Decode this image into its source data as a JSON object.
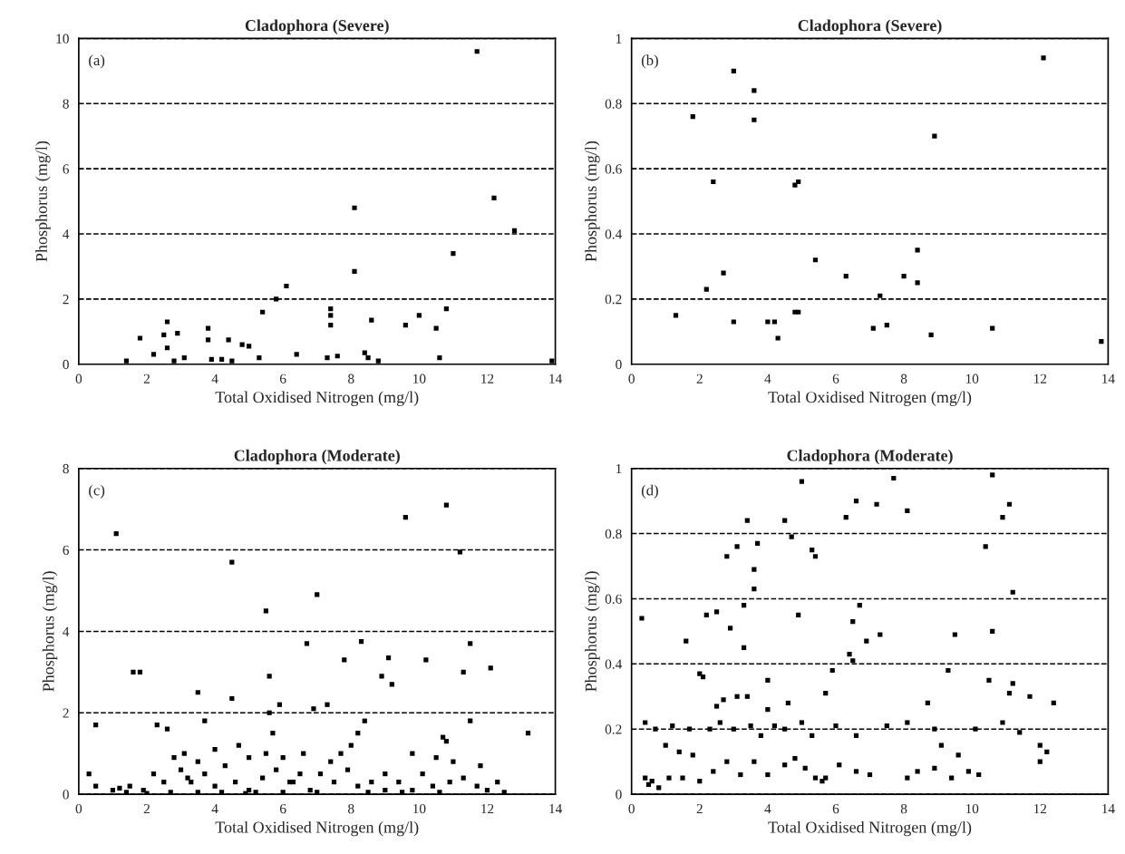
{
  "chart_data": [
    {
      "type": "scatter",
      "title": "Cladophora (Severe)",
      "xlabel": "Total Oxidised Nitrogen (mg/l)",
      "ylabel": "Phosphorus (mg/l)",
      "annotations": [
        "(a)"
      ],
      "xlim": [
        0,
        14
      ],
      "ylim": [
        0,
        10
      ],
      "xticks": [
        0,
        2,
        4,
        6,
        8,
        10,
        12,
        14
      ],
      "yticks": [
        0,
        2,
        4,
        6,
        8,
        10
      ],
      "grid": "y",
      "line_style": "dashed",
      "marker": "square",
      "legend": false,
      "series": [
        {
          "color": "#000000",
          "x": [
            11.7,
            12.2,
            12.8,
            8.1,
            11.0,
            8.1,
            6.1,
            5.8,
            5.4,
            7.4,
            7.4,
            7.4,
            10.8,
            10.5,
            10.0,
            9.6,
            8.6,
            2.6,
            2.9,
            2.5,
            1.8,
            3.8,
            3.8,
            4.4,
            2.6,
            3.1,
            2.2,
            1.4,
            3.9,
            4.2,
            4.8,
            5.0,
            5.3,
            6.4,
            7.3,
            7.6,
            8.4,
            8.5,
            10.6,
            13.9,
            8.8,
            2.8,
            4.5
          ],
          "values": [
            9.6,
            5.1,
            4.1,
            4.8,
            3.4,
            2.85,
            2.4,
            2.0,
            1.6,
            1.7,
            1.5,
            1.2,
            1.7,
            1.1,
            1.5,
            1.2,
            1.35,
            1.3,
            0.95,
            0.9,
            0.8,
            1.1,
            0.75,
            0.75,
            0.5,
            0.2,
            0.3,
            0.1,
            0.15,
            0.15,
            0.6,
            0.55,
            0.2,
            0.3,
            0.2,
            0.25,
            0.35,
            0.2,
            0.2,
            0.1,
            0.1,
            0.1,
            0.1
          ]
        }
      ]
    },
    {
      "type": "scatter",
      "title": "Cladophora (Severe)",
      "xlabel": "Total Oxidised Nitrogen (mg/l)",
      "ylabel": "Phosphorus (mg/l)",
      "annotations": [
        "(b)"
      ],
      "xlim": [
        0,
        14
      ],
      "ylim": [
        0,
        1
      ],
      "xticks": [
        0,
        2,
        4,
        6,
        8,
        10,
        12,
        14
      ],
      "yticks": [
        0,
        0.2,
        0.4,
        0.6,
        0.8,
        1
      ],
      "grid": "y",
      "line_style": "dashed",
      "marker": "square",
      "legend": false,
      "series": [
        {
          "color": "#000000",
          "x": [
            3.0,
            1.8,
            3.6,
            3.6,
            2.4,
            4.8,
            4.9,
            5.4,
            6.3,
            7.3,
            8.0,
            8.4,
            8.4,
            2.2,
            2.7,
            1.3,
            3.0,
            4.0,
            4.2,
            4.3,
            4.8,
            4.9,
            7.1,
            7.5,
            8.8,
            10.6,
            13.8,
            8.9,
            12.1
          ],
          "values": [
            0.9,
            0.76,
            0.75,
            0.84,
            0.56,
            0.55,
            0.56,
            0.32,
            0.27,
            0.21,
            0.27,
            0.25,
            0.35,
            0.23,
            0.28,
            0.15,
            0.13,
            0.13,
            0.13,
            0.08,
            0.16,
            0.16,
            0.11,
            0.12,
            0.09,
            0.11,
            0.07,
            0.7,
            0.94
          ]
        }
      ]
    },
    {
      "type": "scatter",
      "title": "Cladophora (Moderate)",
      "xlabel": "Total Oxidised Nitrogen (mg/l)",
      "ylabel": "Phosphorus (mg/l)",
      "annotations": [
        "(c)"
      ],
      "xlim": [
        0,
        14
      ],
      "ylim": [
        0,
        8
      ],
      "xticks": [
        0,
        2,
        4,
        6,
        8,
        10,
        12,
        14
      ],
      "yticks": [
        0,
        2,
        4,
        6,
        8
      ],
      "grid": "y",
      "line_style": "dashed",
      "marker": "square",
      "legend": false,
      "series": [
        {
          "color": "#000000",
          "x": [
            1.1,
            9.6,
            10.8,
            11.2,
            4.5,
            7.0,
            5.5,
            6.7,
            8.3,
            7.8,
            9.1,
            11.5,
            12.1,
            10.2,
            1.6,
            1.8,
            11.3,
            5.6,
            8.9,
            9.2,
            3.5,
            4.5,
            2.3,
            2.6,
            3.7,
            5.9,
            5.6,
            6.9,
            7.3,
            8.4,
            8.2,
            10.7,
            11.5,
            10.8,
            3.1,
            3.5,
            4.0,
            4.7,
            5.0,
            5.5,
            6.6,
            7.4,
            8.0,
            9.0,
            10.5,
            11.0,
            11.8,
            0.5,
            0.3,
            0.5,
            1.0,
            1.2,
            1.5,
            1.9,
            2.2,
            2.5,
            2.8,
            3.0,
            3.3,
            3.7,
            4.0,
            4.3,
            4.6,
            5.0,
            5.2,
            5.4,
            5.8,
            6.2,
            6.5,
            6.8,
            7.1,
            7.5,
            7.9,
            8.2,
            8.6,
            9.0,
            9.4,
            9.8,
            10.1,
            10.4,
            10.9,
            11.3,
            11.7,
            12.0,
            12.3,
            13.2,
            1.4,
            2.0,
            2.7,
            3.5,
            4.2,
            4.9,
            6.0,
            7.0,
            8.5,
            9.5,
            10.6,
            12.5,
            6.0,
            7.7,
            9.8,
            3.2,
            5.7,
            6.3
          ],
          "values": [
            6.4,
            6.8,
            7.1,
            5.95,
            5.7,
            4.9,
            4.5,
            3.7,
            3.75,
            3.3,
            3.35,
            3.7,
            3.1,
            3.3,
            3.0,
            3.0,
            3.0,
            2.9,
            2.9,
            2.7,
            2.5,
            2.35,
            1.7,
            1.6,
            1.8,
            2.2,
            2.0,
            2.1,
            2.2,
            1.8,
            1.5,
            1.4,
            1.8,
            1.3,
            1.0,
            0.8,
            1.1,
            1.2,
            0.9,
            1.0,
            1.0,
            0.8,
            1.2,
            0.5,
            0.9,
            0.8,
            0.7,
            1.7,
            0.5,
            0.2,
            0.1,
            0.15,
            0.2,
            0.1,
            0.5,
            0.3,
            0.9,
            0.6,
            0.3,
            0.5,
            0.2,
            0.7,
            0.3,
            0.1,
            0.05,
            0.4,
            0.6,
            0.3,
            0.5,
            0.1,
            0.5,
            0.3,
            0.6,
            0.2,
            0.3,
            0.1,
            0.3,
            0.1,
            0.5,
            0.2,
            0.3,
            0.4,
            0.2,
            0.1,
            0.3,
            1.5,
            0.05,
            0.02,
            0.05,
            0.05,
            0.05,
            0.02,
            0.05,
            0.05,
            0.05,
            0.05,
            0.05,
            0.05,
            0.9,
            1.0,
            1.0,
            0.4,
            1.5,
            0.3
          ]
        }
      ]
    },
    {
      "type": "scatter",
      "title": "Cladophora (Moderate)",
      "xlabel": "Total Oxidised Nitrogen (mg/l)",
      "ylabel": "Phosphorus (mg/l)",
      "annotations": [
        "(d)"
      ],
      "xlim": [
        0,
        14
      ],
      "ylim": [
        0,
        1
      ],
      "xticks": [
        0,
        2,
        4,
        6,
        8,
        10,
        12,
        14
      ],
      "yticks": [
        0,
        0.2,
        0.4,
        0.6,
        0.8,
        1
      ],
      "grid": "y",
      "line_style": "dashed",
      "marker": "square",
      "legend": false,
      "series": [
        {
          "color": "#000000",
          "x": [
            5.0,
            7.7,
            10.6,
            6.6,
            7.2,
            11.1,
            8.1,
            3.4,
            4.5,
            6.3,
            10.9,
            4.7,
            3.1,
            3.7,
            5.3,
            5.4,
            2.8,
            10.4,
            3.6,
            3.6,
            11.2,
            6.7,
            3.3,
            2.5,
            2.2,
            4.9,
            0.3,
            6.5,
            2.9,
            7.3,
            9.5,
            10.6,
            1.6,
            6.9,
            3.3,
            6.4,
            6.5,
            2.0,
            2.1,
            4.0,
            5.9,
            9.3,
            10.5,
            11.2,
            11.1,
            11.7,
            12.4,
            2.7,
            3.1,
            3.4,
            4.6,
            4.0,
            5.7,
            2.5,
            1.2,
            0.4,
            0.7,
            1.0,
            1.4,
            1.7,
            1.8,
            2.3,
            2.6,
            3.0,
            3.5,
            3.8,
            4.2,
            4.5,
            5.0,
            5.3,
            6.0,
            6.6,
            7.5,
            8.1,
            8.7,
            8.9,
            9.1,
            9.6,
            10.1,
            10.9,
            11.4,
            12.0,
            12.2,
            12.0,
            0.4,
            0.6,
            0.8,
            1.1,
            1.5,
            2.0,
            2.4,
            2.8,
            3.2,
            3.6,
            4.0,
            4.5,
            4.8,
            5.1,
            5.4,
            5.7,
            6.1,
            6.6,
            7.0,
            8.1,
            8.4,
            8.9,
            9.4,
            9.9,
            10.2,
            0.5,
            5.6
          ],
          "values": [
            0.96,
            0.97,
            0.98,
            0.9,
            0.89,
            0.89,
            0.87,
            0.84,
            0.84,
            0.85,
            0.85,
            0.79,
            0.76,
            0.77,
            0.75,
            0.73,
            0.73,
            0.76,
            0.69,
            0.63,
            0.62,
            0.58,
            0.58,
            0.56,
            0.55,
            0.55,
            0.54,
            0.53,
            0.51,
            0.49,
            0.49,
            0.5,
            0.47,
            0.47,
            0.45,
            0.43,
            0.41,
            0.37,
            0.36,
            0.35,
            0.38,
            0.38,
            0.35,
            0.34,
            0.31,
            0.3,
            0.28,
            0.29,
            0.3,
            0.3,
            0.28,
            0.26,
            0.31,
            0.27,
            0.21,
            0.22,
            0.2,
            0.15,
            0.13,
            0.2,
            0.12,
            0.2,
            0.22,
            0.2,
            0.21,
            0.18,
            0.21,
            0.2,
            0.22,
            0.18,
            0.21,
            0.18,
            0.21,
            0.22,
            0.28,
            0.2,
            0.15,
            0.12,
            0.2,
            0.22,
            0.19,
            0.15,
            0.13,
            0.1,
            0.05,
            0.04,
            0.02,
            0.05,
            0.05,
            0.04,
            0.07,
            0.1,
            0.06,
            0.1,
            0.06,
            0.09,
            0.11,
            0.08,
            0.05,
            0.05,
            0.09,
            0.07,
            0.06,
            0.05,
            0.07,
            0.08,
            0.05,
            0.07,
            0.06,
            0.03,
            0.04
          ]
        }
      ]
    }
  ]
}
